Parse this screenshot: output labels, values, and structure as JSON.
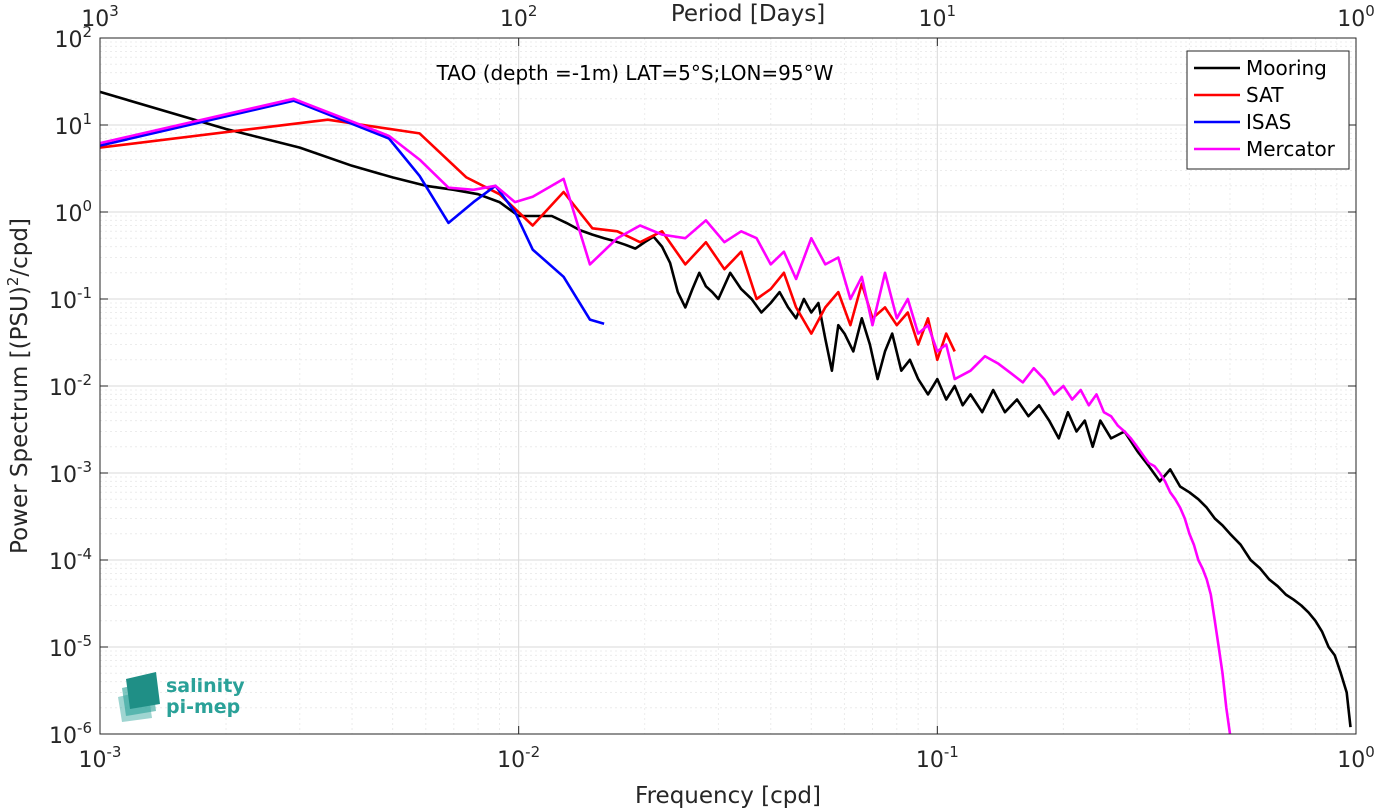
{
  "chart_data": {
    "type": "line",
    "title": "",
    "annotation": "TAO (depth =-1m) LAT=5°S;LON=95°W",
    "xlabel": "Frequency [cpd]",
    "ylabel": "Power Spectrum [(PSU)²/cpd]",
    "x2label": "Period [Days]",
    "xscale": "log",
    "yscale": "log",
    "xlim": [
      0.001,
      1
    ],
    "ylim": [
      1e-06,
      100
    ],
    "grid": true,
    "legend_position": "top-right",
    "x_ticks": [
      {
        "base": "10",
        "exp": "-3"
      },
      {
        "base": "10",
        "exp": "-2"
      },
      {
        "base": "10",
        "exp": "-1"
      },
      {
        "base": "10",
        "exp": "0"
      }
    ],
    "x2_ticks": [
      {
        "base": "10",
        "exp": "3"
      },
      {
        "base": "10",
        "exp": "2"
      },
      {
        "base": "10",
        "exp": "1"
      },
      {
        "base": "10",
        "exp": "0"
      }
    ],
    "y_ticks": [
      {
        "base": "10",
        "exp": "-6"
      },
      {
        "base": "10",
        "exp": "-5"
      },
      {
        "base": "10",
        "exp": "-4"
      },
      {
        "base": "10",
        "exp": "-3"
      },
      {
        "base": "10",
        "exp": "-2"
      },
      {
        "base": "10",
        "exp": "-1"
      },
      {
        "base": "10",
        "exp": "0"
      },
      {
        "base": "10",
        "exp": "1"
      },
      {
        "base": "10",
        "exp": "2"
      }
    ],
    "series": [
      {
        "name": "Mooring",
        "color": "#000000",
        "x": [
          0.001,
          0.002,
          0.003,
          0.004,
          0.005,
          0.006,
          0.007,
          0.008,
          0.009,
          0.01,
          0.011,
          0.012,
          0.013,
          0.014,
          0.015,
          0.016,
          0.017,
          0.018,
          0.019,
          0.02,
          0.021,
          0.022,
          0.023,
          0.024,
          0.025,
          0.026,
          0.027,
          0.028,
          0.029,
          0.03,
          0.032,
          0.034,
          0.036,
          0.038,
          0.04,
          0.042,
          0.044,
          0.046,
          0.048,
          0.05,
          0.052,
          0.054,
          0.056,
          0.058,
          0.06,
          0.063,
          0.066,
          0.069,
          0.072,
          0.075,
          0.078,
          0.082,
          0.086,
          0.09,
          0.095,
          0.1,
          0.105,
          0.11,
          0.115,
          0.12,
          0.128,
          0.136,
          0.145,
          0.155,
          0.165,
          0.175,
          0.185,
          0.195,
          0.205,
          0.215,
          0.225,
          0.235,
          0.245,
          0.26,
          0.28,
          0.3,
          0.32,
          0.34,
          0.36,
          0.38,
          0.4,
          0.42,
          0.44,
          0.46,
          0.48,
          0.5,
          0.53,
          0.56,
          0.59,
          0.62,
          0.65,
          0.68,
          0.71,
          0.74,
          0.77,
          0.8,
          0.83,
          0.86,
          0.89,
          0.92,
          0.95,
          0.97
        ],
        "y": [
          24,
          9,
          5.5,
          3.4,
          2.5,
          2.0,
          1.8,
          1.6,
          1.3,
          0.9,
          0.9,
          0.9,
          0.75,
          0.62,
          0.55,
          0.5,
          0.46,
          0.42,
          0.38,
          0.45,
          0.52,
          0.4,
          0.26,
          0.12,
          0.08,
          0.13,
          0.2,
          0.14,
          0.12,
          0.1,
          0.2,
          0.13,
          0.1,
          0.07,
          0.09,
          0.12,
          0.08,
          0.06,
          0.1,
          0.07,
          0.09,
          0.035,
          0.015,
          0.05,
          0.04,
          0.025,
          0.06,
          0.03,
          0.012,
          0.025,
          0.04,
          0.015,
          0.02,
          0.012,
          0.008,
          0.012,
          0.007,
          0.01,
          0.006,
          0.008,
          0.005,
          0.009,
          0.005,
          0.007,
          0.0045,
          0.006,
          0.004,
          0.0025,
          0.005,
          0.003,
          0.004,
          0.002,
          0.004,
          0.0025,
          0.003,
          0.0018,
          0.0012,
          0.0008,
          0.0011,
          0.0007,
          0.0006,
          0.0005,
          0.0004,
          0.0003,
          0.00025,
          0.0002,
          0.00015,
          0.0001,
          8e-05,
          6e-05,
          5e-05,
          4e-05,
          3.5e-05,
          3e-05,
          2.5e-05,
          2e-05,
          1.5e-05,
          1e-05,
          8e-06,
          5e-06,
          3e-06,
          1.2e-06
        ]
      },
      {
        "name": "SAT",
        "color": "#ff0000",
        "x": [
          0.001,
          0.0035,
          0.0058,
          0.0075,
          0.009,
          0.0108,
          0.0128,
          0.015,
          0.0172,
          0.0195,
          0.022,
          0.025,
          0.028,
          0.031,
          0.034,
          0.037,
          0.04,
          0.043,
          0.046,
          0.05,
          0.054,
          0.058,
          0.062,
          0.066,
          0.07,
          0.075,
          0.08,
          0.085,
          0.09,
          0.095,
          0.1,
          0.105,
          0.11
        ],
        "y": [
          5.5,
          11.5,
          8,
          2.5,
          1.6,
          0.7,
          1.7,
          0.65,
          0.6,
          0.45,
          0.6,
          0.25,
          0.45,
          0.22,
          0.35,
          0.1,
          0.13,
          0.2,
          0.08,
          0.04,
          0.08,
          0.12,
          0.05,
          0.15,
          0.06,
          0.08,
          0.05,
          0.07,
          0.03,
          0.06,
          0.02,
          0.04,
          0.025
        ]
      },
      {
        "name": "ISAS",
        "color": "#0000ff",
        "x": [
          0.001,
          0.0029,
          0.0049,
          0.0058,
          0.0068,
          0.0078,
          0.0088,
          0.0098,
          0.0108,
          0.0128,
          0.0148,
          0.016
        ],
        "y": [
          5.8,
          19,
          7,
          2.6,
          0.75,
          1.3,
          2.0,
          1.0,
          0.37,
          0.18,
          0.058,
          0.052
        ]
      },
      {
        "name": "Mercator",
        "color": "#ff00ff",
        "x": [
          0.001,
          0.0029,
          0.0049,
          0.0058,
          0.0068,
          0.0078,
          0.0088,
          0.0098,
          0.0108,
          0.0128,
          0.0148,
          0.0172,
          0.0195,
          0.022,
          0.025,
          0.028,
          0.031,
          0.034,
          0.037,
          0.04,
          0.043,
          0.046,
          0.05,
          0.054,
          0.058,
          0.062,
          0.066,
          0.07,
          0.075,
          0.08,
          0.085,
          0.09,
          0.095,
          0.1,
          0.105,
          0.11,
          0.12,
          0.13,
          0.14,
          0.15,
          0.16,
          0.17,
          0.18,
          0.19,
          0.2,
          0.21,
          0.22,
          0.23,
          0.24,
          0.25,
          0.26,
          0.27,
          0.28,
          0.29,
          0.3,
          0.31,
          0.32,
          0.33,
          0.34,
          0.35,
          0.36,
          0.37,
          0.38,
          0.39,
          0.4,
          0.41,
          0.42,
          0.43,
          0.44,
          0.45,
          0.46,
          0.47,
          0.48,
          0.49,
          0.5
        ],
        "y": [
          6.2,
          20,
          7.5,
          4.0,
          1.9,
          1.8,
          2.0,
          1.3,
          1.5,
          2.4,
          0.25,
          0.5,
          0.7,
          0.55,
          0.5,
          0.8,
          0.45,
          0.6,
          0.5,
          0.25,
          0.35,
          0.17,
          0.5,
          0.25,
          0.3,
          0.1,
          0.18,
          0.05,
          0.2,
          0.06,
          0.1,
          0.04,
          0.05,
          0.025,
          0.03,
          0.012,
          0.015,
          0.022,
          0.018,
          0.014,
          0.011,
          0.016,
          0.012,
          0.008,
          0.01,
          0.007,
          0.009,
          0.006,
          0.008,
          0.005,
          0.0045,
          0.0035,
          0.003,
          0.0025,
          0.002,
          0.0016,
          0.0013,
          0.0012,
          0.001,
          0.0008,
          0.0006,
          0.0005,
          0.0004,
          0.0003,
          0.0002,
          0.00015,
          0.0001,
          8e-05,
          6e-05,
          4e-05,
          2e-05,
          1e-05,
          5e-06,
          2e-06,
          1e-06
        ]
      }
    ]
  },
  "logo": {
    "line1": "salinity",
    "line2": "pi-mep"
  }
}
